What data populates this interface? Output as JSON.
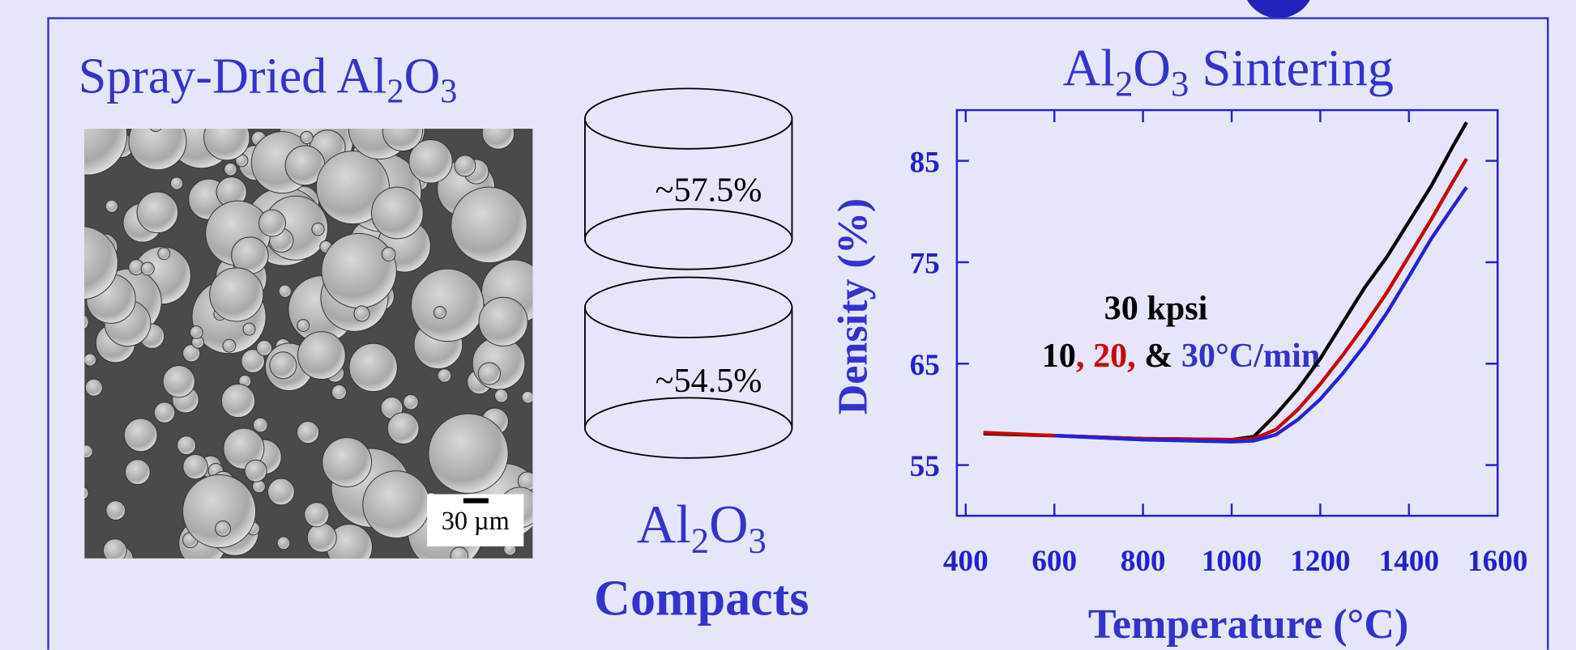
{
  "left_panel": {
    "title": [
      "Spray-Dried Al",
      "2",
      "O",
      "3"
    ],
    "scale_bar": "30 µm"
  },
  "compacts": {
    "densities": [
      "~57.5%",
      "~54.5%"
    ],
    "label": [
      "Al",
      "2",
      "O",
      "3"
    ],
    "caption": "Compacts"
  },
  "chart_data": {
    "type": "line",
    "title": [
      "Al",
      "2",
      "O",
      "3",
      " Sintering"
    ],
    "x_label": "Temperature (°C)",
    "y_label": "Density (%)",
    "annotation": {
      "pressure": "30 kpsi",
      "rates": [
        "10",
        ", 20,",
        " &",
        " 30°C/min"
      ]
    },
    "x": [
      440,
      600,
      800,
      1000,
      1050,
      1100,
      1150,
      1200,
      1250,
      1300,
      1350,
      1400,
      1450,
      1500,
      1530
    ],
    "series": [
      {
        "color": "#000000",
        "values": [
          58.1,
          57.9,
          57.6,
          57.5,
          57.8,
          60.0,
          62.5,
          65.5,
          69.0,
          72.5,
          75.5,
          79.0,
          82.5,
          86.5,
          88.8
        ]
      },
      {
        "color": "#cc0000",
        "values": [
          58.2,
          57.9,
          57.6,
          57.5,
          57.6,
          58.5,
          60.5,
          63.0,
          65.8,
          68.8,
          72.0,
          75.6,
          79.2,
          83.0,
          85.2
        ]
      },
      {
        "color": "#2222dd",
        "values": [
          null,
          57.9,
          57.5,
          57.3,
          57.4,
          58.0,
          59.5,
          61.5,
          64.0,
          66.8,
          70.0,
          73.6,
          77.3,
          80.5,
          82.4
        ]
      }
    ],
    "xlim": [
      380,
      1600
    ],
    "ylim": [
      50,
      90
    ],
    "xticks": [
      400,
      600,
      800,
      1000,
      1200,
      1400,
      1600
    ],
    "yticks": [
      55,
      65,
      75,
      85
    ]
  }
}
